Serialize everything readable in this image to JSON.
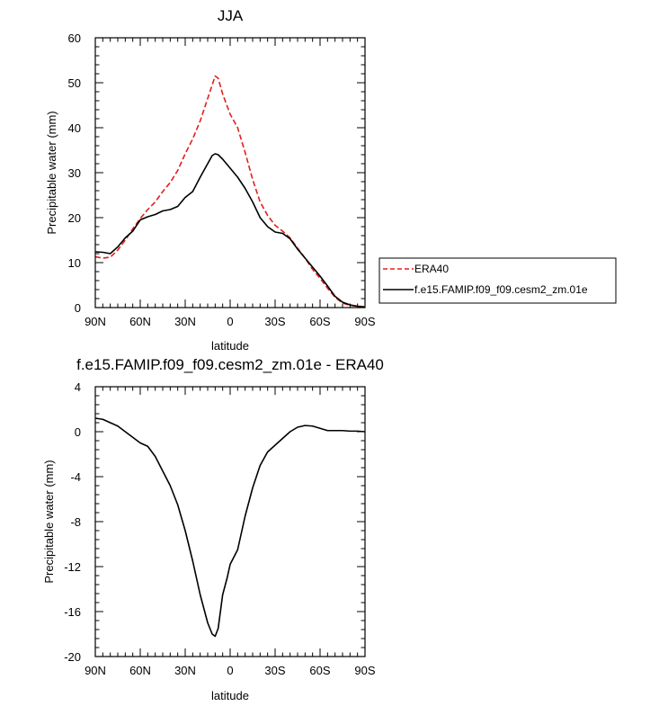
{
  "chart_data": [
    {
      "type": "line",
      "title": "JJA",
      "xlabel": "latitude",
      "ylabel": "Precipitable water (mm)",
      "xlim": [
        90,
        -90
      ],
      "ylim": [
        0,
        60
      ],
      "x_ticks": [
        90,
        60,
        30,
        0,
        -30,
        -60,
        -90
      ],
      "x_tick_labels": [
        "90N",
        "60N",
        "30N",
        "0",
        "30S",
        "60S",
        "90S"
      ],
      "y_ticks": [
        0,
        10,
        20,
        30,
        40,
        50,
        60
      ],
      "y_tick_labels": [
        "0",
        "10",
        "20",
        "30",
        "40",
        "50",
        "60"
      ],
      "legend_position": "right",
      "series": [
        {
          "name": "ERA40",
          "color": "#e0201b",
          "dash": "dashed",
          "x": [
            90,
            85,
            80,
            75,
            70,
            65,
            60,
            55,
            50,
            45,
            40,
            35,
            30,
            25,
            20,
            15,
            12,
            10,
            8,
            5,
            0,
            -5,
            -10,
            -15,
            -20,
            -25,
            -30,
            -35,
            -40,
            -45,
            -50,
            -55,
            -60,
            -65,
            -70,
            -75,
            -80,
            -85,
            -90
          ],
          "values": [
            11.3,
            11.0,
            11.2,
            12.8,
            15.0,
            17.5,
            19.8,
            21.8,
            23.5,
            25.8,
            27.8,
            30.5,
            34.2,
            37.5,
            41.5,
            46.5,
            49.5,
            51.5,
            51.0,
            47.5,
            43.0,
            40.0,
            34.5,
            28.5,
            23.5,
            20.5,
            18.3,
            17.0,
            15.5,
            13.2,
            11.0,
            8.5,
            6.5,
            4.3,
            2.3,
            1.0,
            0.5,
            0.3,
            0.2
          ]
        },
        {
          "name": "f.e15.FAMIP.f09_f09.cesm2_zm.01e",
          "color": "#000000",
          "dash": "solid",
          "x": [
            90,
            85,
            80,
            75,
            70,
            65,
            60,
            55,
            50,
            45,
            40,
            35,
            30,
            25,
            20,
            15,
            12,
            10,
            8,
            5,
            0,
            -5,
            -10,
            -15,
            -20,
            -25,
            -30,
            -35,
            -40,
            -45,
            -50,
            -55,
            -60,
            -65,
            -70,
            -75,
            -80,
            -85,
            -90
          ],
          "values": [
            12.4,
            12.3,
            12.0,
            13.5,
            15.5,
            17.0,
            19.5,
            20.2,
            20.7,
            21.5,
            21.8,
            22.5,
            24.5,
            25.8,
            29.0,
            32.0,
            33.8,
            34.2,
            34.0,
            33.0,
            31.0,
            29.0,
            26.5,
            23.5,
            20.0,
            18.0,
            16.8,
            16.5,
            15.3,
            13.0,
            11.0,
            9.0,
            7.0,
            4.8,
            2.5,
            1.2,
            0.6,
            0.3,
            0.1
          ]
        }
      ]
    },
    {
      "type": "line",
      "title": "f.e15.FAMIP.f09_f09.cesm2_zm.01e - ERA40",
      "xlabel": "latitude",
      "ylabel": "Precipitable water (mm)",
      "xlim": [
        90,
        -90
      ],
      "ylim": [
        -20,
        4
      ],
      "x_ticks": [
        90,
        60,
        30,
        0,
        -30,
        -60,
        -90
      ],
      "x_tick_labels": [
        "90N",
        "60N",
        "30N",
        "0",
        "30S",
        "60S",
        "90S"
      ],
      "y_ticks": [
        4,
        0,
        -4,
        -8,
        -12,
        -16,
        -20
      ],
      "y_tick_labels": [
        "4",
        "0",
        "-4",
        "-8",
        "-12",
        "-16",
        "-20"
      ],
      "series": [
        {
          "color": "#000000",
          "dash": "solid",
          "x": [
            90,
            85,
            80,
            75,
            70,
            65,
            60,
            55,
            50,
            45,
            40,
            35,
            30,
            25,
            20,
            15,
            12,
            10,
            8,
            5,
            2,
            0,
            -5,
            -10,
            -15,
            -20,
            -25,
            -30,
            -35,
            -40,
            -45,
            -50,
            -55,
            -60,
            -65,
            -70,
            -75,
            -80,
            -85,
            -90
          ],
          "values": [
            1.2,
            1.1,
            0.8,
            0.5,
            0.0,
            -0.5,
            -1.0,
            -1.3,
            -2.2,
            -3.5,
            -4.8,
            -6.5,
            -8.8,
            -11.5,
            -14.5,
            -17.0,
            -18.0,
            -18.2,
            -17.5,
            -14.5,
            -13.0,
            -11.8,
            -10.5,
            -7.5,
            -5.0,
            -3.0,
            -1.8,
            -1.2,
            -0.6,
            0.0,
            0.4,
            0.55,
            0.5,
            0.3,
            0.1,
            0.1,
            0.1,
            0.05,
            0.05,
            0.0
          ]
        }
      ]
    }
  ]
}
